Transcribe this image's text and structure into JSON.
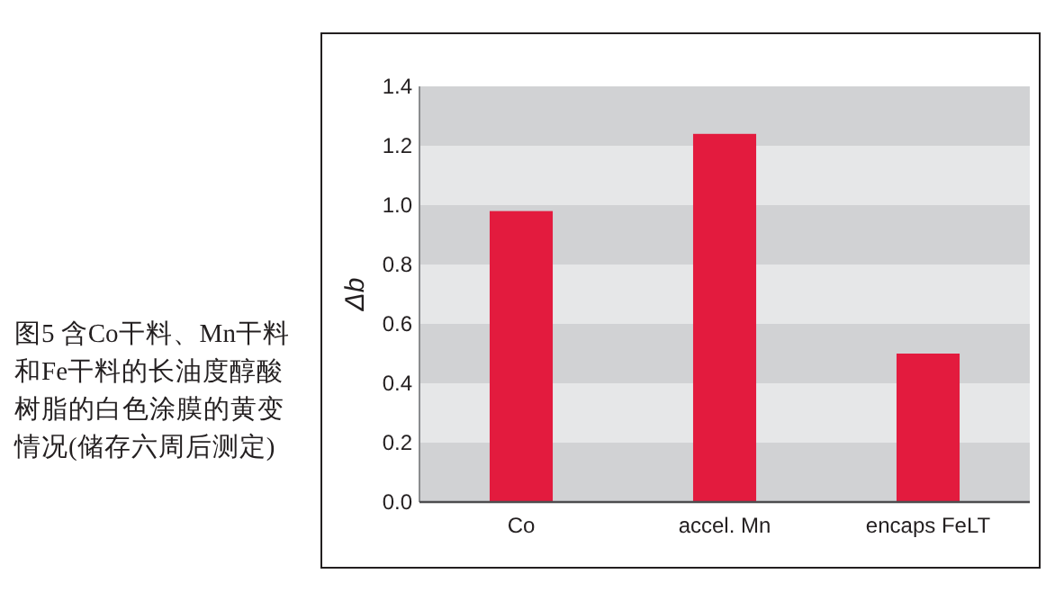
{
  "chart_data": {
    "type": "bar",
    "title": "图5  含Co干料、Mn干料和Fe干料的长油度醇酸树脂的白色涂膜的黄变情况(储存六周后测定)",
    "ylabel": "Δb",
    "categories": [
      "Co",
      "accel. Mn",
      "encaps FeLT"
    ],
    "values": [
      0.98,
      1.24,
      0.5
    ],
    "color": "#e31b3e",
    "ylim": [
      0,
      1.4
    ],
    "yticks": [
      {
        "value": 0,
        "label": "0.0"
      },
      {
        "value": 0.2,
        "label": "0.2"
      },
      {
        "value": 0.4,
        "label": "0.4"
      },
      {
        "value": 0.6,
        "label": "0.6"
      },
      {
        "value": 0.8,
        "label": "0.8"
      },
      {
        "value": 1,
        "label": "1.0"
      },
      {
        "value": 1.2,
        "label": "1.2"
      },
      {
        "value": 1.4,
        "label": "1.4"
      }
    ],
    "bands": [
      {
        "axis": "y",
        "from": 0,
        "to": 0.2,
        "color": "#d1d2d4"
      },
      {
        "axis": "y",
        "from": 0.2,
        "to": 0.4,
        "color": "#e6e7e8"
      },
      {
        "axis": "y",
        "from": 0.4,
        "to": 0.6,
        "color": "#d1d2d4"
      },
      {
        "axis": "y",
        "from": 0.6,
        "to": 0.8,
        "color": "#e6e7e8"
      },
      {
        "axis": "y",
        "from": 0.8,
        "to": 1,
        "color": "#d1d2d4"
      },
      {
        "axis": "y",
        "from": 1,
        "to": 1.2,
        "color": "#e6e7e8"
      },
      {
        "axis": "y",
        "from": 1.2,
        "to": 1.4,
        "color": "#d1d2d4"
      }
    ]
  }
}
